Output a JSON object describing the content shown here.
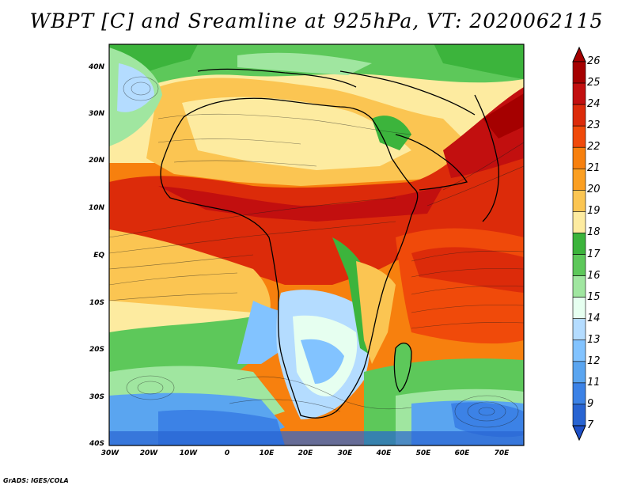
{
  "title": "WBPT [C] and Sreamline at 925hPa, VT: 2020062115",
  "credit": "GrADS: IGES/COLA",
  "lat_labels": [
    "40N",
    "30N",
    "20N",
    "10N",
    "EQ",
    "10S",
    "20S",
    "30S",
    "40S"
  ],
  "lon_labels": [
    "30W",
    "20W",
    "10W",
    "0",
    "10E",
    "20E",
    "30E",
    "40E",
    "50E",
    "60E",
    "70E"
  ],
  "colorbar": {
    "labels": [
      "26",
      "25",
      "24",
      "23",
      "22",
      "21",
      "20",
      "19",
      "18",
      "17",
      "16",
      "15",
      "14",
      "13",
      "12",
      "11",
      "9",
      "7"
    ],
    "colors": [
      "#a50000",
      "#c20f0f",
      "#dc2b0a",
      "#f04a0a",
      "#f7800e",
      "#fb9f22",
      "#fbc552",
      "#fdeba0",
      "#3cb43c",
      "#5dc85a",
      "#a0e6a0",
      "#e6fff0",
      "#b4dcff",
      "#82c3ff",
      "#5aa5f0",
      "#3c82e6",
      "#2864d2"
    ]
  },
  "map": {
    "region": "Africa and surrounding oceans",
    "lon_range": [
      "30W",
      "75E"
    ],
    "lat_range": [
      "40S",
      "45N"
    ],
    "variable": "Wet-bulb potential temperature (C) with 925hPa streamlines"
  }
}
